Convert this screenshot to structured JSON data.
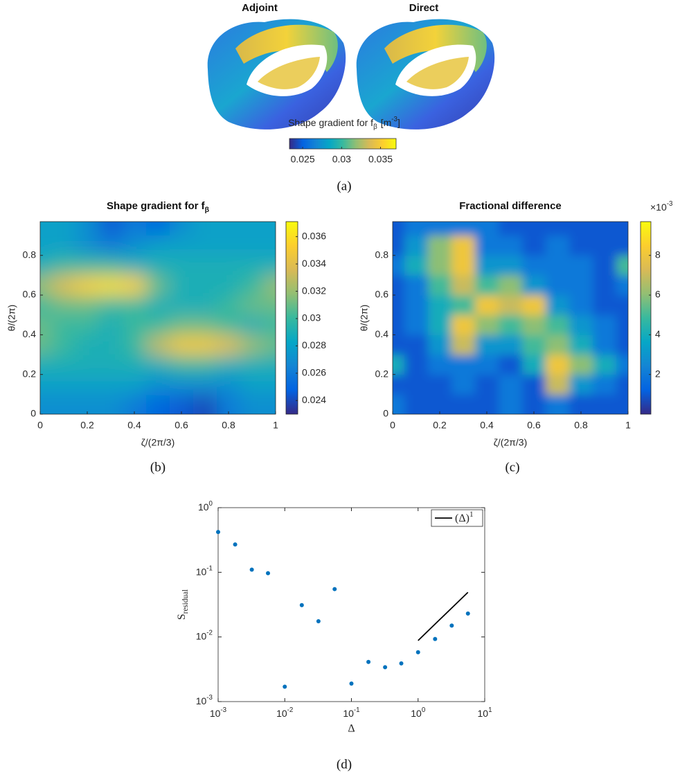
{
  "chart_data": [
    {
      "type": "render",
      "titles": [
        "Adjoint",
        "Direct"
      ],
      "colorbar_label": {
        "text": "Shape gradient for f",
        "sub": "β",
        "unit": "[m",
        "unit_sup": "-3",
        "unit_end": "]"
      },
      "colormap": "parula",
      "clim": [
        0.0233,
        0.037
      ],
      "cticks": [
        0.025,
        0.03,
        0.035
      ],
      "caption": "(a)"
    },
    {
      "type": "heatmap",
      "title": {
        "text": "Shape gradient for f",
        "sub": "β"
      },
      "xlabel": "ζ/(2π/3)",
      "ylabel": "θ/(2π)",
      "x": [
        0,
        0.1,
        0.2,
        0.3,
        0.4,
        0.5,
        0.6,
        0.7,
        0.8,
        0.9,
        1
      ],
      "y": [
        0.05,
        0.15,
        0.25,
        0.35,
        0.45,
        0.55,
        0.65,
        0.75,
        0.85,
        0.95
      ],
      "z": [
        [
          0.027,
          0.027,
          0.027,
          0.027,
          0.026,
          0.025,
          0.0245,
          0.024,
          0.026,
          0.027,
          0.027
        ],
        [
          0.028,
          0.028,
          0.028,
          0.028,
          0.028,
          0.027,
          0.027,
          0.027,
          0.027,
          0.028,
          0.028
        ],
        [
          0.029,
          0.029,
          0.029,
          0.029,
          0.029,
          0.029,
          0.03,
          0.03,
          0.029,
          0.029,
          0.029
        ],
        [
          0.031,
          0.03,
          0.029,
          0.029,
          0.03,
          0.033,
          0.035,
          0.035,
          0.034,
          0.032,
          0.031
        ],
        [
          0.031,
          0.03,
          0.03,
          0.029,
          0.03,
          0.03,
          0.031,
          0.031,
          0.03,
          0.029,
          0.03
        ],
        [
          0.03,
          0.031,
          0.031,
          0.03,
          0.03,
          0.029,
          0.029,
          0.029,
          0.03,
          0.031,
          0.031
        ],
        [
          0.032,
          0.034,
          0.0355,
          0.036,
          0.0355,
          0.031,
          0.029,
          0.029,
          0.029,
          0.03,
          0.032
        ],
        [
          0.029,
          0.03,
          0.03,
          0.03,
          0.029,
          0.029,
          0.029,
          0.029,
          0.029,
          0.029,
          0.029
        ],
        [
          0.028,
          0.028,
          0.027,
          0.026,
          0.027,
          0.028,
          0.028,
          0.028,
          0.028,
          0.028,
          0.028
        ],
        [
          0.028,
          0.028,
          0.027,
          0.0245,
          0.026,
          0.025,
          0.027,
          0.028,
          0.028,
          0.028,
          0.028
        ]
      ],
      "xlim": [
        0,
        1
      ],
      "ylim": [
        0,
        0.97
      ],
      "xticks": [
        0,
        0.2,
        0.4,
        0.6,
        0.8,
        1
      ],
      "yticks": [
        0,
        0.2,
        0.4,
        0.6,
        0.8
      ],
      "colormap": "parula",
      "clim": [
        0.023,
        0.0371
      ],
      "cticks": [
        0.024,
        0.026,
        0.028,
        0.03,
        0.032,
        0.034,
        0.036
      ],
      "caption": "(b)"
    },
    {
      "type": "heatmap",
      "title": "Fractional difference",
      "colorbar_exponent": {
        "text": "×10",
        "sup": "-3"
      },
      "xlabel": "ζ/(2π/3)",
      "ylabel": "θ/(2π)",
      "x": [
        0,
        0.1,
        0.2,
        0.3,
        0.4,
        0.5,
        0.6,
        0.7,
        0.8,
        0.9,
        1
      ],
      "y": [
        0.05,
        0.15,
        0.25,
        0.35,
        0.45,
        0.55,
        0.65,
        0.75,
        0.85,
        0.95
      ],
      "z": [
        [
          2,
          1,
          1,
          1,
          1,
          2,
          1,
          2,
          1,
          1,
          1
        ],
        [
          1,
          1,
          1,
          2,
          1,
          2,
          1,
          7,
          3,
          2,
          1
        ],
        [
          4,
          1,
          2,
          2,
          2,
          1,
          4,
          8,
          6,
          4,
          2
        ],
        [
          1,
          1,
          3,
          7,
          3,
          3,
          5,
          6,
          4,
          2,
          1
        ],
        [
          1,
          2,
          4,
          8,
          6,
          5,
          6,
          5,
          3,
          2,
          1
        ],
        [
          1,
          2,
          4,
          5,
          8,
          7,
          8,
          3,
          2,
          1,
          1
        ],
        [
          1,
          2,
          5,
          7,
          5,
          6,
          3,
          2,
          2,
          1,
          2
        ],
        [
          2,
          4,
          6,
          8,
          3,
          3,
          2,
          2,
          2,
          1,
          5
        ],
        [
          1,
          3,
          6,
          8,
          2,
          2,
          1,
          2,
          1,
          1,
          1
        ],
        [
          1,
          2,
          2,
          2,
          2,
          1,
          1,
          1,
          1,
          1,
          1
        ]
      ],
      "xlim": [
        0,
        1
      ],
      "ylim": [
        0,
        0.97
      ],
      "xticks": [
        0,
        0.2,
        0.4,
        0.6,
        0.8,
        1
      ],
      "yticks": [
        0,
        0.2,
        0.4,
        0.6,
        0.8
      ],
      "colormap": "parula",
      "clim": [
        0,
        9.7
      ],
      "cticks": [
        2,
        4,
        6,
        8
      ],
      "caption": "(c)"
    },
    {
      "type": "scatter",
      "xlabel": "Δ",
      "ylabel": {
        "text": "S",
        "sub": "residual"
      },
      "xscale": "log",
      "yscale": "log",
      "xlim": [
        0.001,
        10
      ],
      "ylim": [
        0.001,
        1
      ],
      "xticks": [
        {
          "value": 0.001,
          "label": "10",
          "exponent": "-3"
        },
        {
          "value": 0.01,
          "label": "10",
          "exponent": "-2"
        },
        {
          "value": 0.1,
          "label": "10",
          "exponent": "-1"
        },
        {
          "value": 1,
          "label": "10",
          "exponent": "0"
        },
        {
          "value": 10,
          "label": "10",
          "exponent": "1"
        }
      ],
      "yticks": [
        {
          "value": 0.001,
          "label": "10",
          "exponent": "-3"
        },
        {
          "value": 0.01,
          "label": "10",
          "exponent": "-2"
        },
        {
          "value": 0.1,
          "label": "10",
          "exponent": "-1"
        },
        {
          "value": 1,
          "label": "10",
          "exponent": "0"
        }
      ],
      "series": [
        {
          "color": "#0072bd",
          "x": [
            0.001,
            0.0018,
            0.0032,
            0.0056,
            0.01,
            0.018,
            0.032,
            0.056,
            0.1,
            0.18,
            0.32,
            0.56,
            1,
            1.8,
            3.2,
            5.6
          ],
          "values": [
            0.42,
            0.27,
            0.11,
            0.097,
            0.0017,
            0.031,
            0.0175,
            0.055,
            0.0019,
            0.0041,
            0.0034,
            0.0039,
            0.0058,
            0.0093,
            0.015,
            0.023
          ]
        },
        {
          "name": {
            "base": "(Δ)",
            "sup": "1"
          },
          "type": "line",
          "color": "#000000",
          "x": [
            1,
            5.6
          ],
          "values": [
            0.0088,
            0.049
          ]
        }
      ],
      "legend": "upper right",
      "caption": "(d)"
    }
  ]
}
